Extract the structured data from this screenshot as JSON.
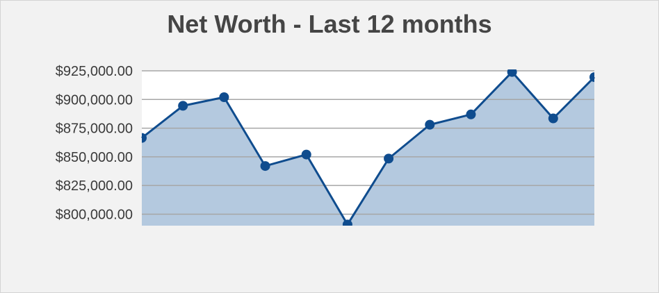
{
  "chart_data": {
    "type": "area",
    "title": "Net Worth - Last 12 months",
    "xlabel": "",
    "ylabel": "",
    "x": [
      1,
      2,
      3,
      4,
      5,
      6,
      7,
      8,
      9,
      10,
      11,
      12
    ],
    "series": [
      {
        "values": [
          866500,
          894500,
          902000,
          842000,
          852000,
          791000,
          848500,
          878000,
          887000,
          924000,
          883500,
          919500
        ]
      }
    ],
    "yticks": [
      800000,
      825000,
      850000,
      875000,
      900000,
      925000
    ],
    "ytick_labels": [
      "$800,000.00",
      "$825,000.00",
      "$850,000.00",
      "$875,000.00",
      "$900,000.00",
      "$925,000.00"
    ],
    "ylim": [
      790000,
      925000
    ],
    "grid": true,
    "legend": "none",
    "colors": {
      "line": "#0f4c8e",
      "fill": "#b4c9df",
      "grid": "#a6a6a6",
      "plot_background": "#ffffff",
      "panel_background": "#f2f2f2"
    }
  }
}
